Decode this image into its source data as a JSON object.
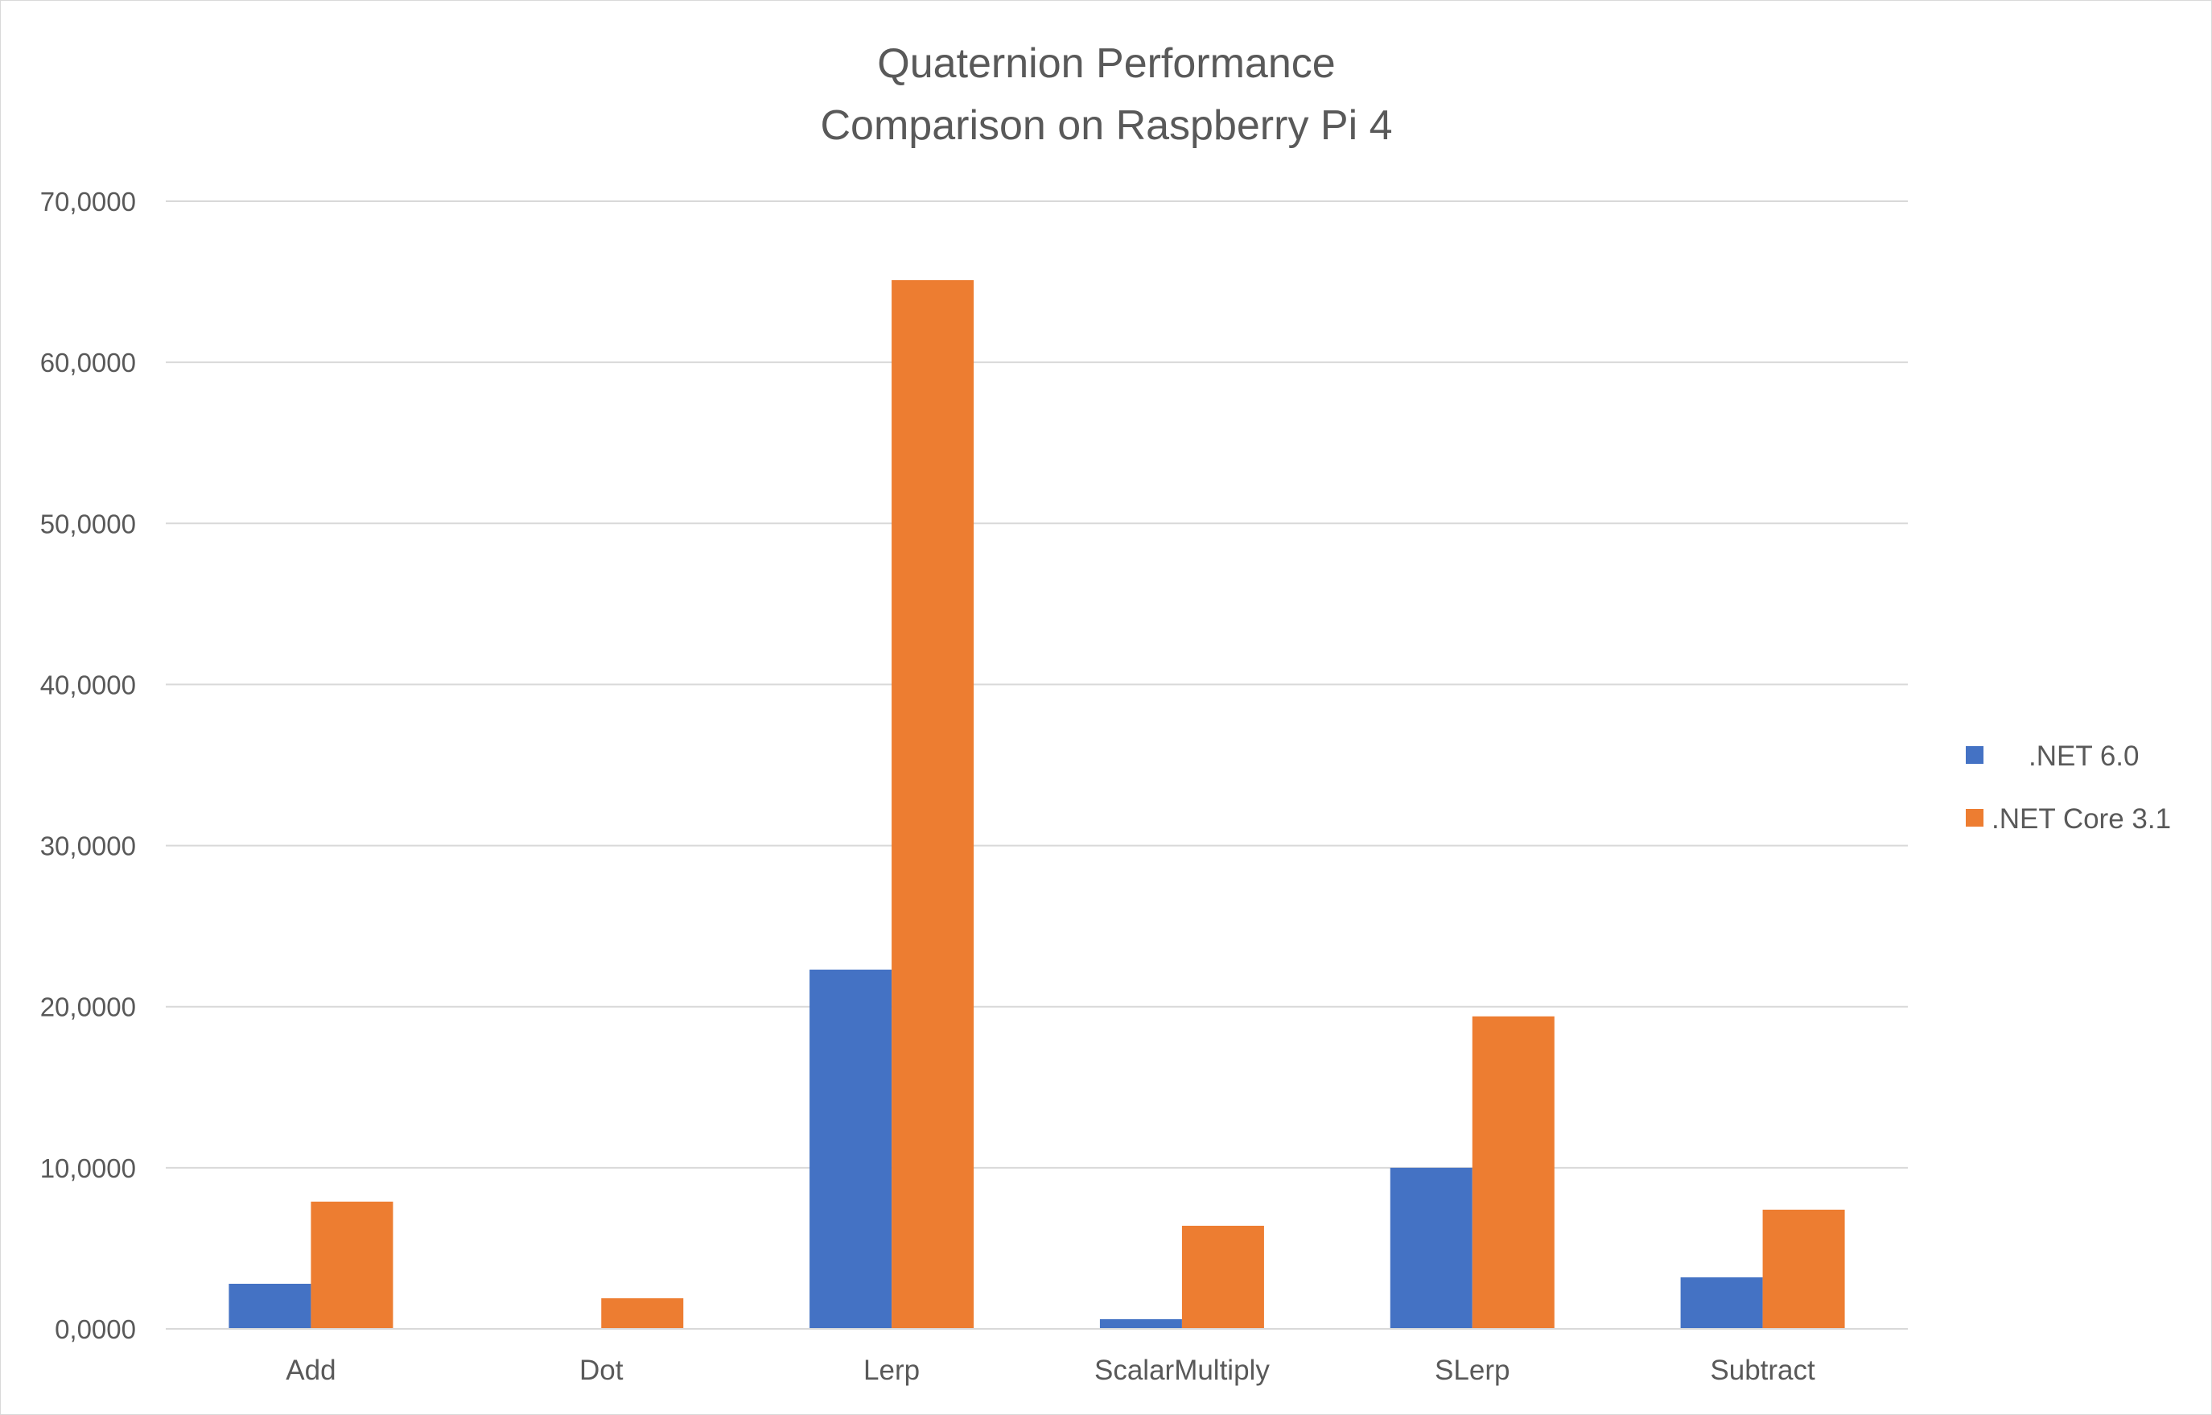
{
  "chart_data": {
    "type": "bar",
    "title_lines": [
      "Quaternion Performance",
      "Comparison on Raspberry Pi 4"
    ],
    "categories": [
      "Add",
      "Dot",
      "Lerp",
      "ScalarMultiply",
      "SLerp",
      "Subtract"
    ],
    "series": [
      {
        "name": ".NET 6.0",
        "color": "#4472c4",
        "values": [
          2.8,
          0.0,
          22.3,
          0.6,
          10.0,
          3.2
        ]
      },
      {
        "name": ".NET Core 3.1",
        "color": "#ed7d31",
        "values": [
          7.9,
          1.9,
          65.1,
          6.4,
          19.4,
          7.4
        ]
      }
    ],
    "ylim": [
      0,
      70
    ],
    "yticks": [
      0,
      10,
      20,
      30,
      40,
      50,
      60,
      70
    ],
    "ytick_labels": [
      "0,0000",
      "10,0000",
      "20,0000",
      "30,0000",
      "40,0000",
      "50,0000",
      "60,0000",
      "70,0000"
    ],
    "xlabel": "",
    "ylabel": "",
    "grid": true,
    "legend_position": "right"
  }
}
